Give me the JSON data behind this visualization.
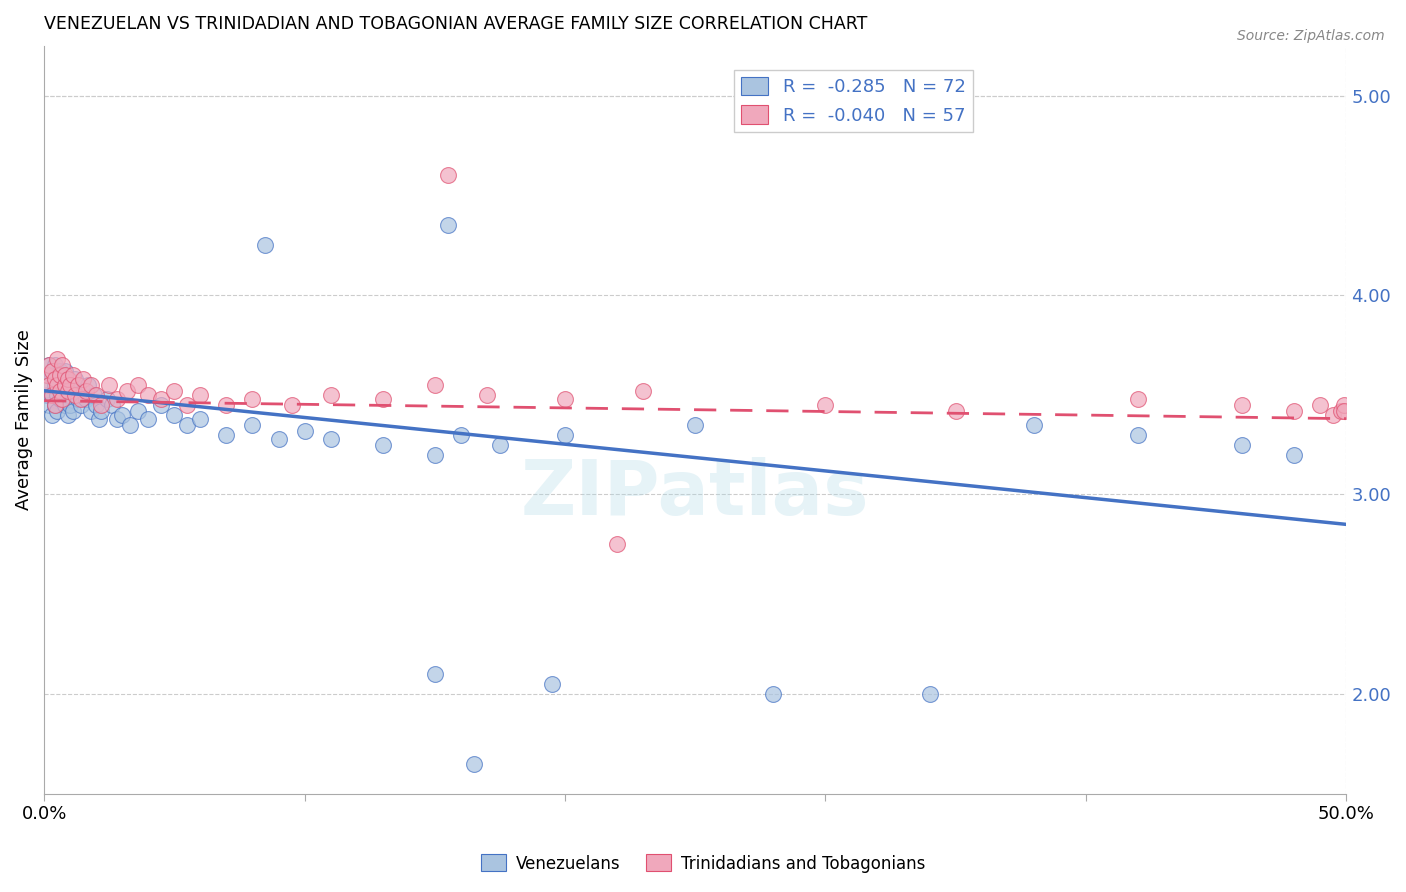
{
  "title": "VENEZUELAN VS TRINIDADIAN AND TOBAGONIAN AVERAGE FAMILY SIZE CORRELATION CHART",
  "source": "Source: ZipAtlas.com",
  "ylabel": "Average Family Size",
  "xlim": [
    0.0,
    0.5
  ],
  "ylim": [
    1.5,
    5.25
  ],
  "yticks": [
    2.0,
    3.0,
    4.0,
    5.0
  ],
  "xticks": [
    0.0,
    0.1,
    0.2,
    0.3,
    0.4,
    0.5
  ],
  "xtick_labels": [
    "0.0%",
    "",
    "",
    "",
    "",
    "50.0%"
  ],
  "blue_color": "#aac4e0",
  "pink_color": "#f0a8bc",
  "trendline_blue": "#4472c4",
  "trendline_pink": "#e05070",
  "watermark": "ZIPatlas",
  "blue_trend_x0": 0.0,
  "blue_trend_y0": 3.52,
  "blue_trend_x1": 0.5,
  "blue_trend_y1": 2.85,
  "pink_trend_x0": 0.0,
  "pink_trend_y0": 3.47,
  "pink_trend_x1": 0.5,
  "pink_trend_y1": 3.38,
  "venezuelan_x": [
    0.001,
    0.001,
    0.002,
    0.002,
    0.002,
    0.003,
    0.003,
    0.003,
    0.004,
    0.004,
    0.004,
    0.005,
    0.005,
    0.005,
    0.006,
    0.006,
    0.006,
    0.007,
    0.007,
    0.008,
    0.008,
    0.008,
    0.009,
    0.009,
    0.01,
    0.01,
    0.011,
    0.011,
    0.012,
    0.013,
    0.014,
    0.015,
    0.016,
    0.017,
    0.018,
    0.019,
    0.02,
    0.021,
    0.022,
    0.024,
    0.026,
    0.028,
    0.03,
    0.033,
    0.036,
    0.04,
    0.045,
    0.05,
    0.055,
    0.06,
    0.07,
    0.08,
    0.09,
    0.1,
    0.11,
    0.13,
    0.15,
    0.16,
    0.175,
    0.2,
    0.15,
    0.165,
    0.195,
    0.28,
    0.34,
    0.085,
    0.155,
    0.25,
    0.38,
    0.42,
    0.46,
    0.48
  ],
  "venezuelan_y": [
    3.5,
    3.6,
    3.45,
    3.55,
    3.65,
    3.5,
    3.4,
    3.6,
    3.55,
    3.45,
    3.65,
    3.5,
    3.6,
    3.42,
    3.55,
    3.48,
    3.62,
    3.5,
    3.58,
    3.45,
    3.55,
    3.62,
    3.5,
    3.4,
    3.55,
    3.45,
    3.52,
    3.42,
    3.58,
    3.48,
    3.45,
    3.52,
    3.48,
    3.55,
    3.42,
    3.5,
    3.45,
    3.38,
    3.42,
    3.48,
    3.45,
    3.38,
    3.4,
    3.35,
    3.42,
    3.38,
    3.45,
    3.4,
    3.35,
    3.38,
    3.3,
    3.35,
    3.28,
    3.32,
    3.28,
    3.25,
    3.2,
    3.3,
    3.25,
    3.3,
    2.1,
    1.65,
    2.05,
    2.0,
    2.0,
    4.25,
    4.35,
    3.35,
    3.35,
    3.3,
    3.25,
    3.2
  ],
  "trinidadian_x": [
    0.001,
    0.002,
    0.002,
    0.003,
    0.003,
    0.004,
    0.004,
    0.005,
    0.005,
    0.006,
    0.006,
    0.007,
    0.007,
    0.008,
    0.008,
    0.009,
    0.009,
    0.01,
    0.011,
    0.012,
    0.013,
    0.014,
    0.015,
    0.016,
    0.018,
    0.02,
    0.022,
    0.025,
    0.028,
    0.032,
    0.036,
    0.04,
    0.045,
    0.05,
    0.055,
    0.06,
    0.07,
    0.08,
    0.095,
    0.11,
    0.13,
    0.15,
    0.17,
    0.2,
    0.23,
    0.155,
    0.22,
    0.3,
    0.35,
    0.42,
    0.46,
    0.48,
    0.49,
    0.495,
    0.498,
    0.499,
    0.499
  ],
  "trinidadian_y": [
    3.6,
    3.55,
    3.65,
    3.5,
    3.62,
    3.58,
    3.45,
    3.68,
    3.55,
    3.6,
    3.52,
    3.65,
    3.48,
    3.55,
    3.6,
    3.52,
    3.58,
    3.55,
    3.6,
    3.5,
    3.55,
    3.48,
    3.58,
    3.52,
    3.55,
    3.5,
    3.45,
    3.55,
    3.48,
    3.52,
    3.55,
    3.5,
    3.48,
    3.52,
    3.45,
    3.5,
    3.45,
    3.48,
    3.45,
    3.5,
    3.48,
    3.55,
    3.5,
    3.48,
    3.52,
    4.6,
    2.75,
    3.45,
    3.42,
    3.48,
    3.45,
    3.42,
    3.45,
    3.4,
    3.42,
    3.45,
    3.42
  ]
}
